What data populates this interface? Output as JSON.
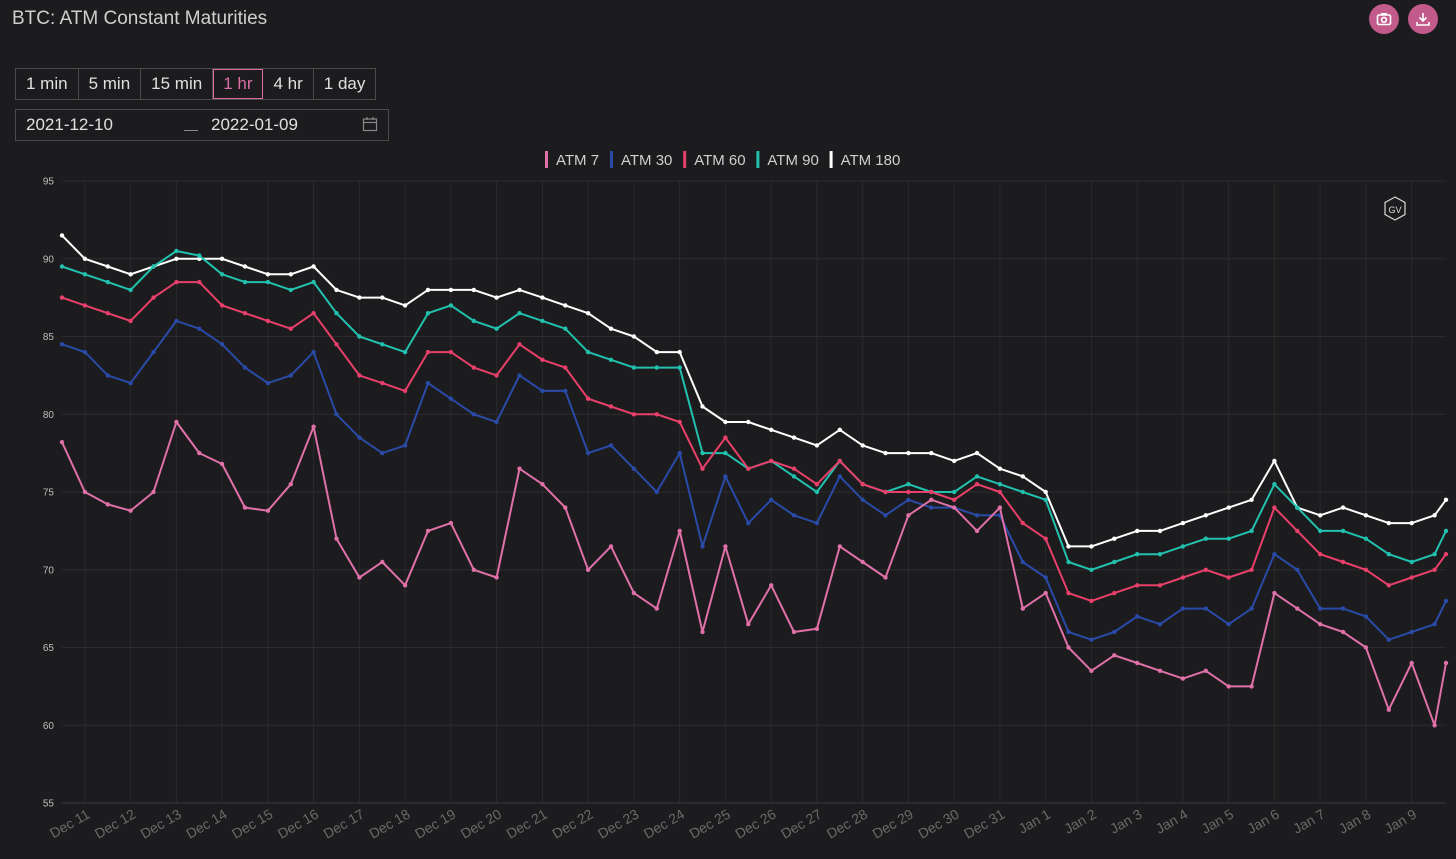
{
  "header": {
    "title": "BTC: ATM Constant Maturities",
    "camera_icon": "camera-icon",
    "download_icon": "download-icon"
  },
  "timeframes": {
    "items": [
      "1 min",
      "5 min",
      "15 min",
      "1 hr",
      "4 hr",
      "1 day"
    ],
    "selected": "1 hr"
  },
  "date_range": {
    "start": "2021-12-10",
    "end": "2022-01-09",
    "calendar_icon": "calendar-icon"
  },
  "watermark": "GV",
  "colors": {
    "ATM 7": "#e070a8",
    "ATM 30": "#2a4aa8",
    "ATM 60": "#e8406a",
    "ATM 90": "#22c0ae",
    "ATM 180": "#ffffff"
  },
  "chart_data": {
    "type": "line",
    "title": "",
    "xlabel": "",
    "ylabel": "",
    "ylim": [
      55,
      95
    ],
    "yticks": [
      55,
      60,
      65,
      70,
      75,
      80,
      85,
      90,
      95
    ],
    "xticks": [
      "Dec 11",
      "Dec 12",
      "Dec 13",
      "Dec 14",
      "Dec 15",
      "Dec 16",
      "Dec 17",
      "Dec 18",
      "Dec 19",
      "Dec 20",
      "Dec 21",
      "Dec 22",
      "Dec 23",
      "Dec 24",
      "Dec 25",
      "Dec 26",
      "Dec 27",
      "Dec 28",
      "Dec 29",
      "Dec 30",
      "Dec 31",
      "Jan 1",
      "Jan 2",
      "Jan 3",
      "Jan 4",
      "Jan 5",
      "Jan 6",
      "Jan 7",
      "Jan 8",
      "Jan 9"
    ],
    "x_domain": [
      "2021-12-10T12:00",
      "2022-01-09T18:00"
    ],
    "grid": true,
    "legend_position": "top-center",
    "x": [
      "2021-12-10T12:00",
      "2021-12-11T00:00",
      "2021-12-11T12:00",
      "2021-12-12T00:00",
      "2021-12-12T12:00",
      "2021-12-13T00:00",
      "2021-12-13T12:00",
      "2021-12-14T00:00",
      "2021-12-14T12:00",
      "2021-12-15T00:00",
      "2021-12-15T12:00",
      "2021-12-16T00:00",
      "2021-12-16T12:00",
      "2021-12-17T00:00",
      "2021-12-17T12:00",
      "2021-12-18T00:00",
      "2021-12-18T12:00",
      "2021-12-19T00:00",
      "2021-12-19T12:00",
      "2021-12-20T00:00",
      "2021-12-20T12:00",
      "2021-12-21T00:00",
      "2021-12-21T12:00",
      "2021-12-22T00:00",
      "2021-12-22T12:00",
      "2021-12-23T00:00",
      "2021-12-23T12:00",
      "2021-12-24T00:00",
      "2021-12-24T12:00",
      "2021-12-25T00:00",
      "2021-12-25T12:00",
      "2021-12-26T00:00",
      "2021-12-26T12:00",
      "2021-12-27T00:00",
      "2021-12-27T12:00",
      "2021-12-28T00:00",
      "2021-12-28T12:00",
      "2021-12-29T00:00",
      "2021-12-29T12:00",
      "2021-12-30T00:00",
      "2021-12-30T12:00",
      "2021-12-31T00:00",
      "2021-12-31T12:00",
      "2022-01-01T00:00",
      "2022-01-01T12:00",
      "2022-01-02T00:00",
      "2022-01-02T12:00",
      "2022-01-03T00:00",
      "2022-01-03T12:00",
      "2022-01-04T00:00",
      "2022-01-04T12:00",
      "2022-01-05T00:00",
      "2022-01-05T12:00",
      "2022-01-06T00:00",
      "2022-01-06T12:00",
      "2022-01-07T00:00",
      "2022-01-07T12:00",
      "2022-01-08T00:00",
      "2022-01-08T12:00",
      "2022-01-09T00:00",
      "2022-01-09T12:00",
      "2022-01-09T18:00"
    ],
    "series": [
      {
        "name": "ATM 7",
        "values": [
          78.2,
          75.0,
          74.2,
          73.8,
          75.0,
          79.5,
          77.5,
          76.8,
          74.0,
          73.8,
          75.5,
          79.2,
          72.0,
          69.5,
          70.5,
          69.0,
          72.5,
          73.0,
          70.0,
          69.5,
          76.5,
          75.5,
          74.0,
          70.0,
          71.5,
          68.5,
          67.5,
          72.5,
          66.0,
          71.5,
          66.5,
          69.0,
          66.0,
          66.2,
          71.5,
          70.5,
          69.5,
          73.5,
          74.5,
          74.0,
          72.5,
          74.0,
          67.5,
          68.5,
          65.0,
          63.5,
          64.5,
          64.0,
          63.5,
          63.0,
          63.5,
          62.5,
          62.5,
          68.5,
          67.5,
          66.5,
          66.0,
          65.0,
          61.0,
          64.0,
          60.0,
          64.0
        ]
      },
      {
        "name": "ATM 30",
        "values": [
          84.5,
          84.0,
          82.5,
          82.0,
          84.0,
          86.0,
          85.5,
          84.5,
          83.0,
          82.0,
          82.5,
          84.0,
          80.0,
          78.5,
          77.5,
          78.0,
          82.0,
          81.0,
          80.0,
          79.5,
          82.5,
          81.5,
          81.5,
          77.5,
          78.0,
          76.5,
          75.0,
          77.5,
          71.5,
          76.0,
          73.0,
          74.5,
          73.5,
          73.0,
          76.0,
          74.5,
          73.5,
          74.5,
          74.0,
          74.0,
          73.5,
          73.5,
          70.5,
          69.5,
          66.0,
          65.5,
          66.0,
          67.0,
          66.5,
          67.5,
          67.5,
          66.5,
          67.5,
          71.0,
          70.0,
          67.5,
          67.5,
          67.0,
          65.5,
          66.0,
          66.5,
          68.0
        ]
      },
      {
        "name": "ATM 60",
        "values": [
          87.5,
          87.0,
          86.5,
          86.0,
          87.5,
          88.5,
          88.5,
          87.0,
          86.5,
          86.0,
          85.5,
          86.5,
          84.5,
          82.5,
          82.0,
          81.5,
          84.0,
          84.0,
          83.0,
          82.5,
          84.5,
          83.5,
          83.0,
          81.0,
          80.5,
          80.0,
          80.0,
          79.5,
          76.5,
          78.5,
          76.5,
          77.0,
          76.5,
          75.5,
          77.0,
          75.5,
          75.0,
          75.0,
          75.0,
          74.5,
          75.5,
          75.0,
          73.0,
          72.0,
          68.5,
          68.0,
          68.5,
          69.0,
          69.0,
          69.5,
          70.0,
          69.5,
          70.0,
          74.0,
          72.5,
          71.0,
          70.5,
          70.0,
          69.0,
          69.5,
          70.0,
          71.0
        ]
      },
      {
        "name": "ATM 90",
        "values": [
          89.5,
          89.0,
          88.5,
          88.0,
          89.5,
          90.5,
          90.2,
          89.0,
          88.5,
          88.5,
          88.0,
          88.5,
          86.5,
          85.0,
          84.5,
          84.0,
          86.5,
          87.0,
          86.0,
          85.5,
          86.5,
          86.0,
          85.5,
          84.0,
          83.5,
          83.0,
          83.0,
          83.0,
          77.5,
          77.5,
          76.5,
          77.0,
          76.0,
          75.0,
          77.0,
          75.5,
          75.0,
          75.5,
          75.0,
          75.0,
          76.0,
          75.5,
          75.0,
          74.5,
          70.5,
          70.0,
          70.5,
          71.0,
          71.0,
          71.5,
          72.0,
          72.0,
          72.5,
          75.5,
          74.0,
          72.5,
          72.5,
          72.0,
          71.0,
          70.5,
          71.0,
          72.5
        ]
      },
      {
        "name": "ATM 180",
        "values": [
          91.5,
          90.0,
          89.5,
          89.0,
          89.5,
          90.0,
          90.0,
          90.0,
          89.5,
          89.0,
          89.0,
          89.5,
          88.0,
          87.5,
          87.5,
          87.0,
          88.0,
          88.0,
          88.0,
          87.5,
          88.0,
          87.5,
          87.0,
          86.5,
          85.5,
          85.0,
          84.0,
          84.0,
          80.5,
          79.5,
          79.5,
          79.0,
          78.5,
          78.0,
          79.0,
          78.0,
          77.5,
          77.5,
          77.5,
          77.0,
          77.5,
          76.5,
          76.0,
          75.0,
          71.5,
          71.5,
          72.0,
          72.5,
          72.5,
          73.0,
          73.5,
          74.0,
          74.5,
          77.0,
          74.0,
          73.5,
          74.0,
          73.5,
          73.0,
          73.0,
          73.5,
          74.5
        ]
      }
    ]
  }
}
